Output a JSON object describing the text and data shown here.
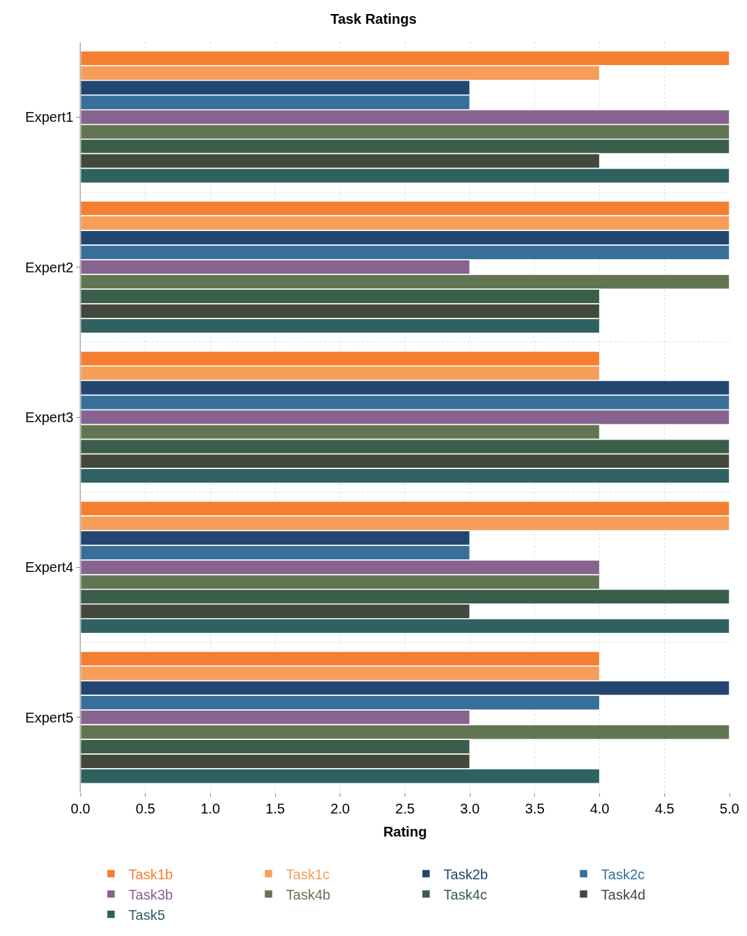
{
  "chart_data": {
    "type": "bar",
    "orientation": "horizontal",
    "title": "Task Ratings",
    "xlabel": "Rating",
    "categories": [
      "Expert1",
      "Expert2",
      "Expert3",
      "Expert4",
      "Expert5"
    ],
    "series": [
      {
        "name": "Task1b",
        "color": "#f47f30",
        "values": [
          5,
          5,
          4,
          5,
          4
        ]
      },
      {
        "name": "Task1c",
        "color": "#f59e5a",
        "values": [
          4,
          5,
          4,
          5,
          4
        ]
      },
      {
        "name": "Task2b",
        "color": "#234670",
        "values": [
          3,
          5,
          5,
          3,
          5
        ]
      },
      {
        "name": "Task2c",
        "color": "#376f98",
        "values": [
          3,
          5,
          5,
          3,
          4
        ]
      },
      {
        "name": "Task3b",
        "color": "#86648f",
        "values": [
          5,
          3,
          5,
          4,
          3
        ]
      },
      {
        "name": "Task4b",
        "color": "#627553",
        "values": [
          5,
          5,
          4,
          4,
          5
        ]
      },
      {
        "name": "Task4c",
        "color": "#3a5e4a",
        "values": [
          5,
          4,
          5,
          5,
          3
        ]
      },
      {
        "name": "Task4d",
        "color": "#42483c",
        "values": [
          4,
          4,
          5,
          3,
          3
        ]
      },
      {
        "name": "Task5",
        "color": "#2e615f",
        "values": [
          5,
          4,
          5,
          5,
          4
        ]
      }
    ],
    "xlim": [
      0,
      5
    ],
    "xticks": [
      {
        "value": 0,
        "label": "0.0"
      },
      {
        "value": 0.5,
        "label": "0.5"
      },
      {
        "value": 1,
        "label": "1.0"
      },
      {
        "value": 1.5,
        "label": "1.5"
      },
      {
        "value": 2,
        "label": "2.0"
      },
      {
        "value": 2.5,
        "label": "2.5"
      },
      {
        "value": 3,
        "label": "3.0"
      },
      {
        "value": 3.5,
        "label": "3.5"
      },
      {
        "value": 4,
        "label": "4.0"
      },
      {
        "value": 4.5,
        "label": "4.5"
      },
      {
        "value": 5,
        "label": "5.0"
      }
    ],
    "grid": true,
    "legend": "bottom"
  }
}
